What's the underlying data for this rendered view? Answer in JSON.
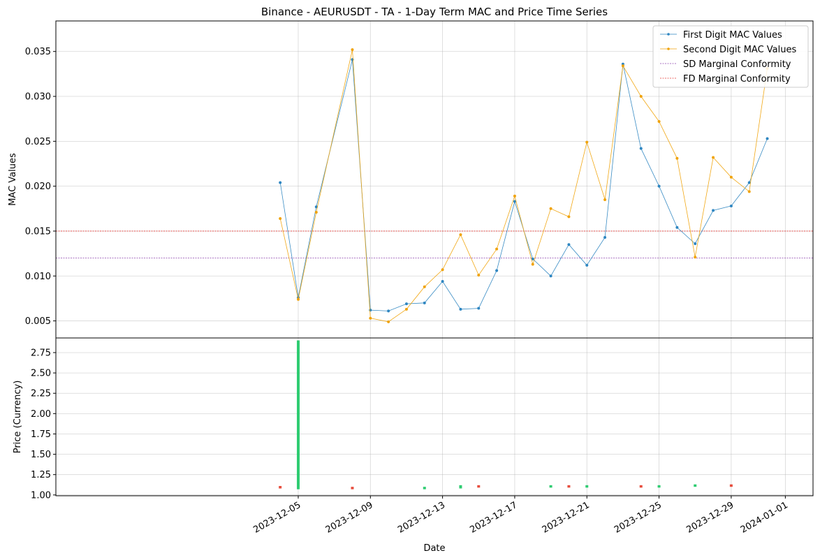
{
  "chart_data": {
    "type": "line",
    "title": "Binance - AEURUSDT - TA - 1-Day Term MAC and Price Time Series",
    "xlabel": "Date",
    "x_ticks": [
      "2023-12-05",
      "2023-12-09",
      "2023-12-13",
      "2023-12-17",
      "2023-12-21",
      "2023-12-25",
      "2023-12-29",
      "2024-01-01"
    ],
    "grid": true,
    "legend_position": "top-right",
    "colors": {
      "first_digit": "#2e86c1",
      "second_digit": "#f0a30a",
      "sd_conformity": "#8e44ad",
      "fd_conformity": "#e53935",
      "price_up": "#2ecc71",
      "price_down": "#e74c3c"
    },
    "mac_panel": {
      "ylabel": "MAC Values",
      "ylim": [
        0.0031,
        0.0384
      ],
      "y_ticks": [
        "0.005",
        "0.010",
        "0.015",
        "0.020",
        "0.025",
        "0.030",
        "0.035"
      ],
      "series": [
        {
          "name": "First Digit MAC Values",
          "points": [
            [
              "2023-12-04",
              0.0204
            ],
            [
              "2023-12-05",
              0.0076
            ],
            [
              "2023-12-06",
              0.0177
            ],
            [
              "2023-12-08",
              0.0341
            ],
            [
              "2023-12-09",
              0.0062
            ],
            [
              "2023-12-10",
              0.0061
            ],
            [
              "2023-12-11",
              0.0069
            ],
            [
              "2023-12-12",
              0.007
            ],
            [
              "2023-12-13",
              0.0094
            ],
            [
              "2023-12-14",
              0.0063
            ],
            [
              "2023-12-15",
              0.0064
            ],
            [
              "2023-12-16",
              0.0106
            ],
            [
              "2023-12-17",
              0.0183
            ],
            [
              "2023-12-18",
              0.0119
            ],
            [
              "2023-12-19",
              0.01
            ],
            [
              "2023-12-20",
              0.0135
            ],
            [
              "2023-12-21",
              0.0112
            ],
            [
              "2023-12-22",
              0.0143
            ],
            [
              "2023-12-23",
              0.0336
            ],
            [
              "2023-12-24",
              0.0242
            ],
            [
              "2023-12-25",
              0.02
            ],
            [
              "2023-12-26",
              0.0154
            ],
            [
              "2023-12-27",
              0.0136
            ],
            [
              "2023-12-28",
              0.0173
            ],
            [
              "2023-12-29",
              0.0178
            ],
            [
              "2023-12-30",
              0.0204
            ],
            [
              "2023-12-31",
              0.0253
            ]
          ]
        },
        {
          "name": "Second Digit MAC Values",
          "points": [
            [
              "2023-12-04",
              0.0164
            ],
            [
              "2023-12-05",
              0.0074
            ],
            [
              "2023-12-06",
              0.0171
            ],
            [
              "2023-12-08",
              0.0352
            ],
            [
              "2023-12-09",
              0.0053
            ],
            [
              "2023-12-10",
              0.0049
            ],
            [
              "2023-12-11",
              0.0063
            ],
            [
              "2023-12-12",
              0.0088
            ],
            [
              "2023-12-13",
              0.0107
            ],
            [
              "2023-12-14",
              0.0146
            ],
            [
              "2023-12-15",
              0.0101
            ],
            [
              "2023-12-16",
              0.013
            ],
            [
              "2023-12-17",
              0.0189
            ],
            [
              "2023-12-18",
              0.0113
            ],
            [
              "2023-12-19",
              0.0175
            ],
            [
              "2023-12-20",
              0.0166
            ],
            [
              "2023-12-21",
              0.0249
            ],
            [
              "2023-12-22",
              0.0185
            ],
            [
              "2023-12-23",
              0.0334
            ],
            [
              "2023-12-24",
              0.03
            ],
            [
              "2023-12-25",
              0.0272
            ],
            [
              "2023-12-26",
              0.0231
            ],
            [
              "2023-12-27",
              0.0121
            ],
            [
              "2023-12-28",
              0.0232
            ],
            [
              "2023-12-29",
              0.021
            ],
            [
              "2023-12-30",
              0.0194
            ],
            [
              "2023-12-31",
              0.0331
            ]
          ]
        }
      ],
      "hlines": [
        {
          "name": "SD Marginal Conformity",
          "value": 0.012
        },
        {
          "name": "FD Marginal Conformity",
          "value": 0.015
        }
      ]
    },
    "price_panel": {
      "ylabel": "Price (Currency)",
      "ylim": [
        0.99,
        2.93
      ],
      "y_ticks": [
        "1.00",
        "1.25",
        "1.50",
        "1.75",
        "2.00",
        "2.25",
        "2.50",
        "2.75"
      ],
      "bars": [
        {
          "date": "2023-12-04",
          "low": 1.08,
          "high": 1.11,
          "direction": "down"
        },
        {
          "date": "2023-12-05",
          "low": 1.07,
          "high": 2.9,
          "direction": "up"
        },
        {
          "date": "2023-12-08",
          "low": 1.07,
          "high": 1.1,
          "direction": "down"
        },
        {
          "date": "2023-12-12",
          "low": 1.07,
          "high": 1.1,
          "direction": "up"
        },
        {
          "date": "2023-12-14",
          "low": 1.08,
          "high": 1.12,
          "direction": "up"
        },
        {
          "date": "2023-12-15",
          "low": 1.09,
          "high": 1.12,
          "direction": "down"
        },
        {
          "date": "2023-12-19",
          "low": 1.09,
          "high": 1.12,
          "direction": "up"
        },
        {
          "date": "2023-12-20",
          "low": 1.09,
          "high": 1.12,
          "direction": "down"
        },
        {
          "date": "2023-12-21",
          "low": 1.09,
          "high": 1.12,
          "direction": "up"
        },
        {
          "date": "2023-12-24",
          "low": 1.09,
          "high": 1.12,
          "direction": "down"
        },
        {
          "date": "2023-12-25",
          "low": 1.09,
          "high": 1.12,
          "direction": "up"
        },
        {
          "date": "2023-12-27",
          "low": 1.1,
          "high": 1.13,
          "direction": "up"
        },
        {
          "date": "2023-12-29",
          "low": 1.1,
          "high": 1.13,
          "direction": "down"
        }
      ]
    }
  }
}
